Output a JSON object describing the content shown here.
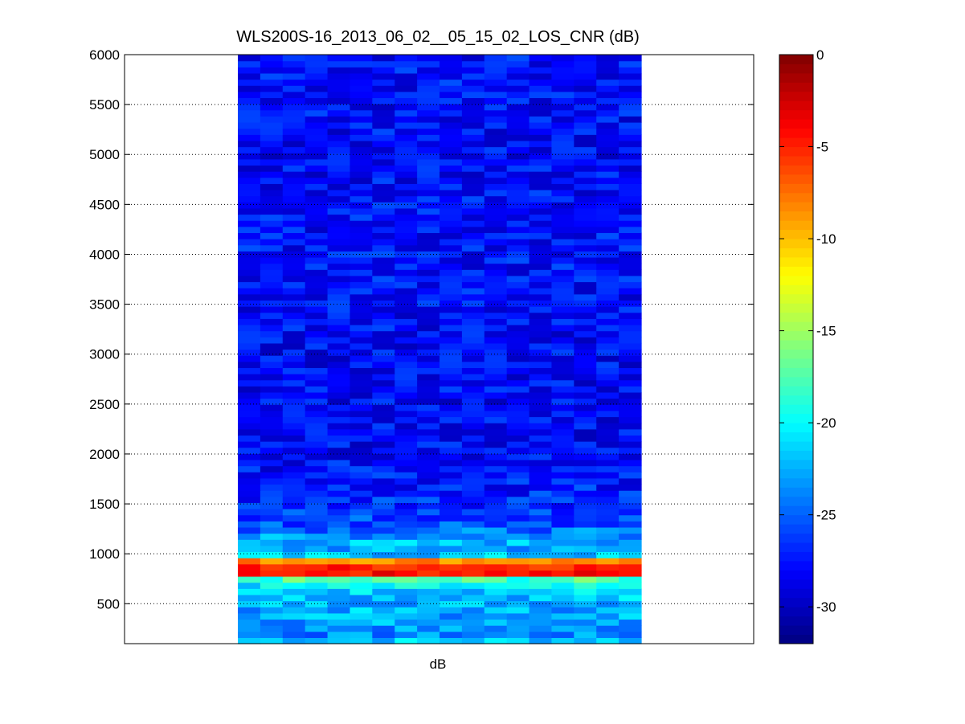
{
  "chart_data": {
    "type": "heatmap",
    "title": "WLS200S-16_2013_06_02__05_15_02_LOS_CNR (dB)",
    "xlabel": "dB",
    "ylabel": "",
    "ylim": [
      100,
      6000
    ],
    "yticks": [
      500,
      1000,
      1500,
      2000,
      2500,
      3000,
      3500,
      4000,
      4500,
      5000,
      5500,
      6000
    ],
    "grid": true,
    "colormap": "jet",
    "color_limits": [
      -32,
      0
    ],
    "colorbar_ticks": [
      0,
      -5,
      -10,
      -15,
      -20,
      -25,
      -30
    ],
    "columns": 18,
    "profile": [
      {
        "y": 120,
        "value": -21
      },
      {
        "y": 180,
        "value": -24
      },
      {
        "y": 300,
        "value": -23
      },
      {
        "y": 450,
        "value": -22.5
      },
      {
        "y": 600,
        "value": -21.5
      },
      {
        "y": 700,
        "value": -20.5
      },
      {
        "y": 760,
        "value": -17
      },
      {
        "y": 800,
        "value": -4
      },
      {
        "y": 850,
        "value": -6
      },
      {
        "y": 900,
        "value": -3
      },
      {
        "y": 940,
        "value": -10
      },
      {
        "y": 1000,
        "value": -24
      },
      {
        "y": 1100,
        "value": -22
      },
      {
        "y": 1300,
        "value": -25.5
      },
      {
        "y": 1600,
        "value": -27
      },
      {
        "y": 2000,
        "value": -28
      },
      {
        "y": 3000,
        "value": -28
      },
      {
        "y": 4000,
        "value": -27.5
      },
      {
        "y": 5000,
        "value": -28
      },
      {
        "y": 6000,
        "value": -27.5
      }
    ]
  }
}
